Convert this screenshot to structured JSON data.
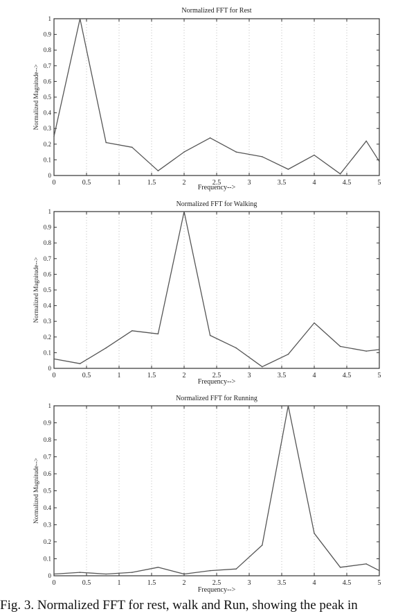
{
  "caption": "Fig. 3. Normalized FFT for rest, walk and Run, showing the peak in",
  "chart_data": [
    {
      "type": "line",
      "title": "Normalized FFT for Rest",
      "xlabel": "Frequency-->",
      "ylabel": "Normalized Magnitude-->",
      "xlim": [
        0,
        5
      ],
      "ylim": [
        0,
        1
      ],
      "grid": "vertical",
      "x_ticks": [
        "0",
        "0.5",
        "1",
        "1.5",
        "2",
        "2.5",
        "3",
        "3.5",
        "4",
        "4.5",
        "5"
      ],
      "y_ticks": [
        "0",
        "0.1",
        "0.2",
        "0.3",
        "0.4",
        "0.5",
        "0.6",
        "0.7",
        "0.8",
        "0.9",
        "1"
      ],
      "x": [
        0,
        0.4,
        0.8,
        1.2,
        1.6,
        2.0,
        2.4,
        2.8,
        3.2,
        3.6,
        4.0,
        4.4,
        4.8,
        5.0
      ],
      "values": [
        0.25,
        1.0,
        0.21,
        0.18,
        0.03,
        0.15,
        0.24,
        0.15,
        0.12,
        0.04,
        0.13,
        0.01,
        0.22,
        0.09
      ],
      "line_color": "#555555"
    },
    {
      "type": "line",
      "title": "Normalized FFT for Walking",
      "xlabel": "Frequency-->",
      "ylabel": "Normalized Magnitude-->",
      "xlim": [
        0,
        5
      ],
      "ylim": [
        0,
        1
      ],
      "grid": "vertical",
      "x_ticks": [
        "0",
        "0.5",
        "1",
        "1.5",
        "2",
        "2.5",
        "3",
        "3.5",
        "4",
        "4.5",
        "5"
      ],
      "y_ticks": [
        "0",
        "0.1",
        "0.2",
        "0.3",
        "0.4",
        "0.5",
        "0.6",
        "0.7",
        "0.8",
        "0.9",
        "1"
      ],
      "x": [
        0,
        0.4,
        0.8,
        1.2,
        1.6,
        2.0,
        2.4,
        2.8,
        3.2,
        3.6,
        4.0,
        4.4,
        4.8,
        5.0
      ],
      "values": [
        0.06,
        0.03,
        0.13,
        0.24,
        0.22,
        1.0,
        0.21,
        0.13,
        0.01,
        0.09,
        0.29,
        0.14,
        0.11,
        0.12
      ],
      "line_color": "#555555"
    },
    {
      "type": "line",
      "title": "Normalized FFT for Running",
      "xlabel": "Frequency-->",
      "ylabel": "Normalized Magnitude-->",
      "xlim": [
        0,
        5
      ],
      "ylim": [
        0,
        1
      ],
      "grid": "vertical",
      "x_ticks": [
        "0",
        "0.5",
        "1",
        "1.5",
        "2",
        "2.5",
        "3",
        "3.5",
        "4",
        "4.5",
        "5"
      ],
      "y_ticks": [
        "0",
        "0.1",
        "0.2",
        "0.3",
        "0.4",
        "0.5",
        "0.6",
        "0.7",
        "0.8",
        "0.9",
        "1"
      ],
      "x": [
        0,
        0.4,
        0.8,
        1.2,
        1.6,
        2.0,
        2.4,
        2.8,
        3.2,
        3.6,
        4.0,
        4.4,
        4.8,
        5.0
      ],
      "values": [
        0.01,
        0.02,
        0.01,
        0.02,
        0.05,
        0.01,
        0.03,
        0.04,
        0.18,
        1.0,
        0.25,
        0.05,
        0.07,
        0.03
      ],
      "line_color": "#555555"
    }
  ]
}
